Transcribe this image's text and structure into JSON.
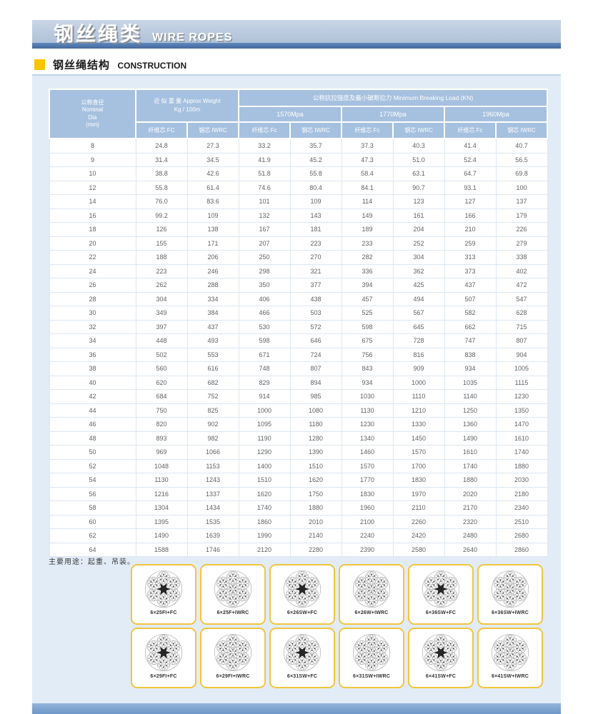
{
  "colors": {
    "yellow": "#f9c401",
    "header-blue": "#a6c1df",
    "panel": "#e2ecf6",
    "card-border": "#f2c53d"
  },
  "banner": {
    "title_zh": "钢丝绳类",
    "title_en": "WIRE ROPES"
  },
  "section": {
    "title_zh": "钢丝绳结构",
    "title_en": "CONSTRUCTION"
  },
  "usage_note": "主要用途：起重、吊装。",
  "table": {
    "col_dia": "公称直径\nNominal\nDia\n(mm)",
    "col_weight": "近 似 重 量 Approx Weight\nKg / 100m",
    "col_load": "公称抗拉强度及最小破断拉力 Minimum Breaking Load (KN)",
    "grades": [
      "1570Mpa",
      "1770Mpa",
      "1960Mpa"
    ],
    "sub": [
      "纤维芯 FC",
      "钢芯 IWRC",
      "纤维芯 Fc",
      "钢芯 IWRC",
      "纤维芯 Fc",
      "钢芯 IWRC",
      "纤维芯 Fc",
      "钢芯 IWRC"
    ],
    "rows": [
      [
        "8",
        "24.8",
        "27.3",
        "33.2",
        "35.7",
        "37.3",
        "40.3",
        "41.4",
        "40.7"
      ],
      [
        "9",
        "31.4",
        "34.5",
        "41.9",
        "45.2",
        "47.3",
        "51.0",
        "52.4",
        "56.5"
      ],
      [
        "10",
        "38.8",
        "42.6",
        "51.8",
        "55.8",
        "58.4",
        "63.1",
        "64.7",
        "69.8"
      ],
      [
        "12",
        "55.8",
        "61.4",
        "74.6",
        "80.4",
        "84.1",
        "90.7",
        "93.1",
        "100"
      ],
      [
        "14",
        "76.0",
        "83.6",
        "101",
        "109",
        "114",
        "123",
        "127",
        "137"
      ],
      [
        "16",
        "99.2",
        "109",
        "132",
        "143",
        "149",
        "161",
        "166",
        "179"
      ],
      [
        "18",
        "126",
        "138",
        "167",
        "181",
        "189",
        "204",
        "210",
        "226"
      ],
      [
        "20",
        "155",
        "171",
        "207",
        "223",
        "233",
        "252",
        "259",
        "279"
      ],
      [
        "22",
        "188",
        "206",
        "250",
        "270",
        "282",
        "304",
        "313",
        "338"
      ],
      [
        "24",
        "223",
        "246",
        "298",
        "321",
        "336",
        "362",
        "373",
        "402"
      ],
      [
        "26",
        "262",
        "288",
        "350",
        "377",
        "394",
        "425",
        "437",
        "472"
      ],
      [
        "28",
        "304",
        "334",
        "406",
        "438",
        "457",
        "494",
        "507",
        "547"
      ],
      [
        "30",
        "349",
        "384",
        "466",
        "503",
        "525",
        "567",
        "582",
        "628"
      ],
      [
        "32",
        "397",
        "437",
        "530",
        "572",
        "598",
        "645",
        "662",
        "715"
      ],
      [
        "34",
        "448",
        "493",
        "598",
        "646",
        "675",
        "728",
        "747",
        "807"
      ],
      [
        "36",
        "502",
        "553",
        "671",
        "724",
        "756",
        "816",
        "838",
        "904"
      ],
      [
        "38",
        "560",
        "616",
        "748",
        "807",
        "843",
        "909",
        "934",
        "1005"
      ],
      [
        "40",
        "620",
        "682",
        "829",
        "894",
        "934",
        "1000",
        "1035",
        "1115"
      ],
      [
        "42",
        "684",
        "752",
        "914",
        "985",
        "1030",
        "1110",
        "1140",
        "1230"
      ],
      [
        "44",
        "750",
        "825",
        "1000",
        "1080",
        "1130",
        "1210",
        "1250",
        "1350"
      ],
      [
        "46",
        "820",
        "902",
        "1095",
        "1180",
        "1230",
        "1330",
        "1360",
        "1470"
      ],
      [
        "48",
        "893",
        "982",
        "1190",
        "1280",
        "1340",
        "1450",
        "1490",
        "1610"
      ],
      [
        "50",
        "969",
        "1066",
        "1290",
        "1390",
        "1460",
        "1570",
        "1610",
        "1740"
      ],
      [
        "52",
        "1048",
        "1153",
        "1400",
        "1510",
        "1570",
        "1700",
        "1740",
        "1880"
      ],
      [
        "54",
        "1130",
        "1243",
        "1510",
        "1620",
        "1770",
        "1830",
        "1880",
        "2030"
      ],
      [
        "56",
        "1216",
        "1337",
        "1620",
        "1750",
        "1830",
        "1970",
        "2020",
        "2180"
      ],
      [
        "58",
        "1304",
        "1434",
        "1740",
        "1880",
        "1960",
        "2110",
        "2170",
        "2340"
      ],
      [
        "60",
        "1395",
        "1535",
        "1860",
        "2010",
        "2100",
        "2260",
        "2320",
        "2510"
      ],
      [
        "62",
        "1490",
        "1639",
        "1990",
        "2140",
        "2240",
        "2420",
        "2480",
        "2680"
      ],
      [
        "64",
        "1588",
        "1746",
        "2120",
        "2280",
        "2390",
        "2580",
        "2640",
        "2860"
      ]
    ]
  },
  "ropes": {
    "row1": [
      {
        "label": "6×25FI+FC",
        "core": "fc"
      },
      {
        "label": "6×25F+IWRC",
        "core": "iwrc"
      },
      {
        "label": "6×26SW+FC",
        "core": "fc"
      },
      {
        "label": "6×26W+IWRC",
        "core": "iwrc"
      },
      {
        "label": "6×36SW+FC",
        "core": "fc"
      },
      {
        "label": "6×36SW+IWRC",
        "core": "iwrc"
      }
    ],
    "row2": [
      {
        "label": "6×29FI+FC",
        "core": "fc"
      },
      {
        "label": "6×29FI+IWRC",
        "core": "iwrc"
      },
      {
        "label": "6×31SW+FC",
        "core": "fc"
      },
      {
        "label": "6×31SW+IWRC",
        "core": "iwrc"
      },
      {
        "label": "6×41SW+FC",
        "core": "fc"
      },
      {
        "label": "6×41SW+IWRC",
        "core": "iwrc"
      }
    ]
  }
}
